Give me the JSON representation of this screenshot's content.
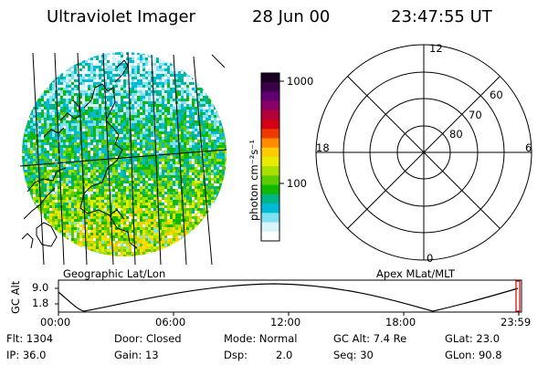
{
  "header": {
    "instrument": "Ultraviolet Imager",
    "date": "28 Jun 00",
    "time": "23:47:55 UT"
  },
  "left_panel": {
    "caption": "Geographic Lat/Lon"
  },
  "colorbar": {
    "label": "photon cm⁻²s⁻¹",
    "ticks": [
      "1000",
      "100"
    ],
    "colors": [
      "#1a0020",
      "#3a0048",
      "#600070",
      "#8a0066",
      "#b3003a",
      "#d40016",
      "#ee3a00",
      "#ff8c00",
      "#ffcc00",
      "#e8ea00",
      "#a8e000",
      "#5ccc00",
      "#10b800",
      "#00b488",
      "#00bbd6",
      "#7fe0f0",
      "#d8f4f8",
      "#ffffff"
    ]
  },
  "right_panel": {
    "caption": "Apex MLat/MLT",
    "mlt_labels": {
      "top": "12",
      "bottom": "0",
      "left": "18",
      "right": "6"
    },
    "lat_labels": [
      "60",
      "70",
      "80"
    ]
  },
  "altitude_strip": {
    "axis_label": "GC Alt",
    "y_ticks": [
      "9.0",
      "1.8"
    ],
    "x_ticks": [
      "00:00",
      "06:00",
      "12:00",
      "18:00",
      "23:59"
    ],
    "marker_color": "#d40000"
  },
  "footer": {
    "flt": "Flt: 1304",
    "ip": "IP: 36.0",
    "door": "Door: Closed",
    "gain": "Gain: 13",
    "mode": "Mode: Normal",
    "dsp_label": "Dsp:",
    "dsp_value": "2.0",
    "gc_alt": "GC Alt: 7.4 Re",
    "seq": "Seq: 30",
    "glat": "GLat: 23.0",
    "glon": "GLon:  90.8"
  }
}
